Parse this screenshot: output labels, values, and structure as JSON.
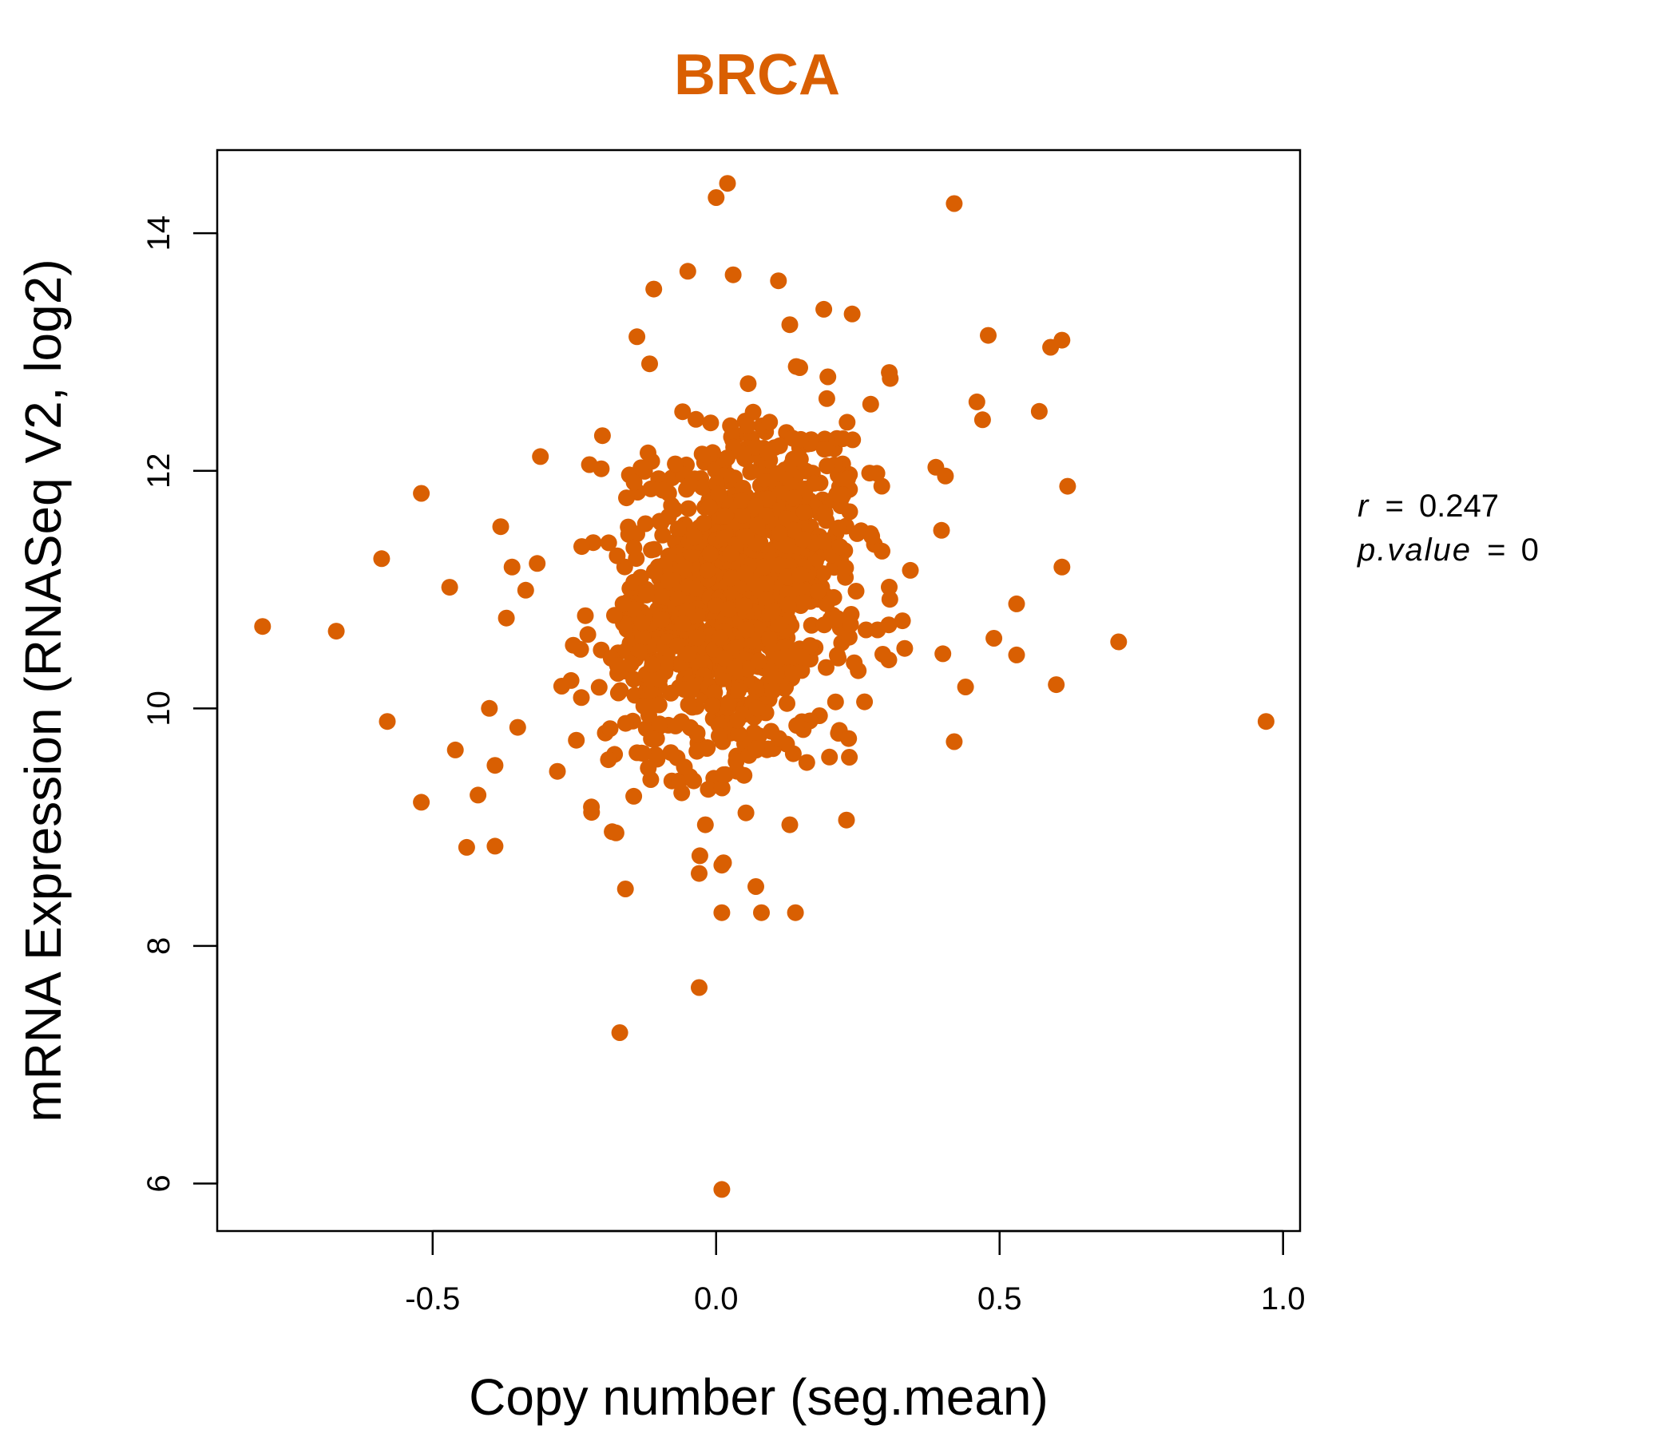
{
  "chart_data": {
    "type": "scatter",
    "title": "BRCA",
    "title_color": "#D95F02",
    "point_color": "#D95F02",
    "xlabel": "Copy number (seg.mean)",
    "ylabel": "mRNA Expression (RNASeq V2, log2)",
    "xlim": [
      -0.88,
      1.03
    ],
    "ylim": [
      5.6,
      14.7
    ],
    "xticks": [
      -0.5,
      0.0,
      0.5,
      1.0
    ],
    "xtick_labels": [
      "-0.5",
      "0.0",
      "0.5",
      "1.0"
    ],
    "yticks": [
      6,
      8,
      10,
      12,
      14
    ],
    "ytick_labels": [
      "6",
      "8",
      "10",
      "12",
      "14"
    ],
    "grid": false,
    "stats": {
      "r_label": "r",
      "r_value": "0.247",
      "p_label": "p.value",
      "p_value": "0"
    },
    "outliers": [
      {
        "x": -0.8,
        "y": 10.69
      },
      {
        "x": -0.67,
        "y": 10.65
      },
      {
        "x": -0.59,
        "y": 11.26
      },
      {
        "x": -0.58,
        "y": 9.89
      },
      {
        "x": -0.52,
        "y": 11.81
      },
      {
        "x": -0.52,
        "y": 9.21
      },
      {
        "x": -0.47,
        "y": 11.02
      },
      {
        "x": -0.46,
        "y": 9.65
      },
      {
        "x": -0.44,
        "y": 8.83
      },
      {
        "x": -0.42,
        "y": 9.27
      },
      {
        "x": -0.4,
        "y": 10.0
      },
      {
        "x": -0.39,
        "y": 9.52
      },
      {
        "x": -0.39,
        "y": 8.84
      },
      {
        "x": -0.38,
        "y": 11.53
      },
      {
        "x": -0.37,
        "y": 10.76
      },
      {
        "x": -0.36,
        "y": 11.19
      },
      {
        "x": -0.35,
        "y": 9.84
      },
      {
        "x": -0.31,
        "y": 12.12
      },
      {
        "x": -0.28,
        "y": 9.47
      },
      {
        "x": -0.22,
        "y": 9.17
      },
      {
        "x": -0.16,
        "y": 8.48
      },
      {
        "x": -0.17,
        "y": 7.27
      },
      {
        "x": -0.11,
        "y": 13.53
      },
      {
        "x": -0.05,
        "y": 13.68
      },
      {
        "x": -0.03,
        "y": 8.61
      },
      {
        "x": -0.03,
        "y": 7.65
      },
      {
        "x": 0.0,
        "y": 14.3
      },
      {
        "x": 0.02,
        "y": 14.42
      },
      {
        "x": 0.01,
        "y": 5.95
      },
      {
        "x": 0.01,
        "y": 8.28
      },
      {
        "x": 0.01,
        "y": 8.68
      },
      {
        "x": 0.07,
        "y": 8.5
      },
      {
        "x": 0.08,
        "y": 8.28
      },
      {
        "x": 0.14,
        "y": 8.28
      },
      {
        "x": 0.13,
        "y": 9.02
      },
      {
        "x": 0.23,
        "y": 9.06
      },
      {
        "x": 0.2,
        "y": 9.59
      },
      {
        "x": 0.19,
        "y": 13.36
      },
      {
        "x": 0.24,
        "y": 13.32
      },
      {
        "x": 0.13,
        "y": 13.23
      },
      {
        "x": 0.11,
        "y": 13.6
      },
      {
        "x": 0.03,
        "y": 13.65
      },
      {
        "x": 0.42,
        "y": 14.25
      },
      {
        "x": 0.48,
        "y": 13.14
      },
      {
        "x": 0.59,
        "y": 13.04
      },
      {
        "x": 0.61,
        "y": 13.1
      },
      {
        "x": 0.57,
        "y": 12.5
      },
      {
        "x": 0.62,
        "y": 11.87
      },
      {
        "x": 0.61,
        "y": 11.19
      },
      {
        "x": 0.53,
        "y": 10.88
      },
      {
        "x": 0.49,
        "y": 10.59
      },
      {
        "x": 0.53,
        "y": 10.45
      },
      {
        "x": 0.6,
        "y": 10.2
      },
      {
        "x": 0.71,
        "y": 10.56
      },
      {
        "x": 0.97,
        "y": 9.89
      },
      {
        "x": 0.42,
        "y": 9.72
      },
      {
        "x": 0.44,
        "y": 10.18
      },
      {
        "x": 0.4,
        "y": 10.46
      },
      {
        "x": 0.46,
        "y": 12.58
      },
      {
        "x": 0.47,
        "y": 12.43
      }
    ],
    "cloud": {
      "count": 1050,
      "mean_x": 0.03,
      "sd_x": 0.11,
      "mean_y": 10.95,
      "sd_y": 0.72,
      "r": 0.247,
      "x_range": [
        -0.34,
        0.47
      ],
      "y_range": [
        8.7,
        13.2
      ]
    }
  }
}
